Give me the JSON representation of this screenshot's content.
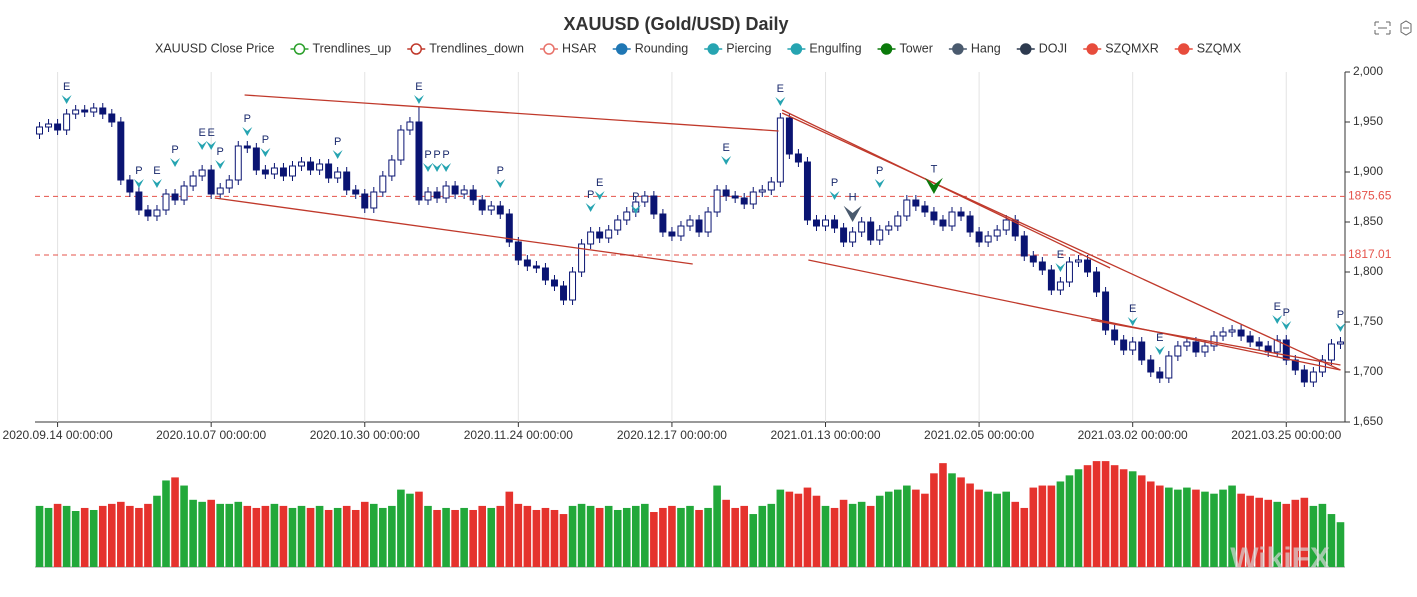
{
  "chart_data": {
    "type": "candlestick",
    "title": "XAUUSD (Gold/USD) Daily",
    "legend": [
      {
        "name": "XAUUSD Close Price",
        "color": "#333333",
        "marker": "none"
      },
      {
        "name": "Trendlines_up",
        "color": "#2ca02c",
        "marker": "hollow"
      },
      {
        "name": "Trendlines_down",
        "color": "#c0392b",
        "marker": "hollow"
      },
      {
        "name": "HSAR",
        "color": "#e8736b",
        "marker": "hollow"
      },
      {
        "name": "Rounding",
        "color": "#1f77b4",
        "marker": "filled"
      },
      {
        "name": "Piercing",
        "color": "#26a4b1",
        "marker": "filled"
      },
      {
        "name": "Engulfing",
        "color": "#26a4b1",
        "marker": "filled"
      },
      {
        "name": "Tower",
        "color": "#0b7a0b",
        "marker": "filled"
      },
      {
        "name": "Hang",
        "color": "#4a5a6e",
        "marker": "filled"
      },
      {
        "name": "DOJI",
        "color": "#2d3a4f",
        "marker": "filled"
      },
      {
        "name": "SZQMXR",
        "color": "#e74c3c",
        "marker": "filled"
      },
      {
        "name": "SZQMX",
        "color": "#e74c3c",
        "marker": "filled"
      }
    ],
    "categories": [
      null,
      null,
      "2020.09.14 00:00:00",
      null,
      null,
      null,
      null,
      null,
      null,
      null,
      null,
      null,
      null,
      null,
      null,
      null,
      null,
      null,
      null,
      "2020.10.07 00:00:00",
      null,
      null,
      null,
      null,
      null,
      null,
      null,
      null,
      null,
      null,
      null,
      null,
      null,
      null,
      null,
      null,
      "2020.10.30 00:00:00",
      null,
      null,
      null,
      null,
      null,
      null,
      null,
      null,
      null,
      null,
      null,
      null,
      null,
      null,
      null,
      null,
      "2020.11.24 00:00:00",
      null,
      null,
      null,
      null,
      null,
      null,
      null,
      null,
      null,
      null,
      null,
      null,
      null,
      null,
      null,
      null,
      "2020.12.17 00:00:00",
      null,
      null,
      null,
      null,
      null,
      null,
      null,
      null,
      null,
      null,
      null,
      null,
      null,
      null,
      null,
      null,
      "2021.01.13 00:00:00",
      null,
      null,
      null,
      null,
      null,
      null,
      null,
      null,
      null,
      null,
      null,
      null,
      null,
      null,
      null,
      null,
      "2021.02.05 00:00:00",
      null,
      null,
      null,
      null,
      null,
      null,
      null,
      null,
      null,
      null,
      null,
      null,
      null,
      null,
      null,
      null,
      "2021.03.02 00:00:00",
      null,
      null,
      null,
      null,
      null,
      null,
      null,
      null,
      null,
      null,
      null,
      null,
      null,
      null,
      null,
      null,
      "2021.03.25 00:00:00",
      null,
      null,
      null,
      null,
      null,
      null
    ],
    "open": [
      1938,
      1945,
      1948,
      1942,
      1958,
      1962,
      1960,
      1964,
      1958,
      1950,
      1892,
      1880,
      1862,
      1856,
      1862,
      1878,
      1872,
      1886,
      1896,
      1902,
      1878,
      1884,
      1892,
      1926,
      1924,
      1902,
      1898,
      1904,
      1896,
      1906,
      1910,
      1902,
      1908,
      1894,
      1900,
      1882,
      1878,
      1864,
      1880,
      1896,
      1912,
      1942,
      1950,
      1872,
      1880,
      1874,
      1886,
      1878,
      1882,
      1872,
      1862,
      1866,
      1858,
      1830,
      1812,
      1806,
      1804,
      1792,
      1786,
      1772,
      1800,
      1828,
      1840,
      1834,
      1842,
      1852,
      1860,
      1870,
      1876,
      1858,
      1840,
      1836,
      1846,
      1852,
      1840,
      1860,
      1882,
      1876,
      1874,
      1868,
      1880,
      1882,
      1890,
      1954,
      1918,
      1910,
      1852,
      1846,
      1852,
      1844,
      1830,
      1840,
      1850,
      1832,
      1842,
      1846,
      1856,
      1872,
      1866,
      1860,
      1852,
      1846,
      1860,
      1856,
      1840,
      1830,
      1836,
      1842,
      1852,
      1836,
      1816,
      1810,
      1802,
      1782,
      1790,
      1810,
      1812,
      1800,
      1780,
      1742,
      1732,
      1722,
      1730,
      1712,
      1700,
      1694,
      1716,
      1726,
      1730,
      1720,
      1726,
      1736,
      1740,
      1742,
      1736,
      1730,
      1726,
      1720,
      1732,
      1712,
      1702,
      1690,
      1700,
      1712,
      1728
    ],
    "high": [
      1950,
      1953,
      1953,
      1963,
      1967,
      1967,
      1969,
      1969,
      1963,
      1955,
      1897,
      1885,
      1867,
      1867,
      1883,
      1883,
      1891,
      1901,
      1907,
      1907,
      1889,
      1897,
      1931,
      1931,
      1929,
      1907,
      1909,
      1909,
      1911,
      1915,
      1915,
      1913,
      1913,
      1905,
      1905,
      1887,
      1883,
      1885,
      1901,
      1917,
      1947,
      1955,
      1965,
      1885,
      1885,
      1891,
      1891,
      1887,
      1887,
      1877,
      1871,
      1871,
      1863,
      1835,
      1817,
      1811,
      1809,
      1797,
      1791,
      1805,
      1833,
      1845,
      1845,
      1847,
      1857,
      1865,
      1875,
      1881,
      1881,
      1863,
      1845,
      1851,
      1857,
      1857,
      1865,
      1887,
      1887,
      1881,
      1879,
      1885,
      1887,
      1895,
      1959,
      1959,
      1923,
      1915,
      1857,
      1857,
      1857,
      1849,
      1845,
      1855,
      1855,
      1847,
      1851,
      1861,
      1877,
      1877,
      1871,
      1865,
      1857,
      1865,
      1865,
      1861,
      1845,
      1841,
      1847,
      1857,
      1857,
      1841,
      1821,
      1815,
      1807,
      1795,
      1815,
      1817,
      1817,
      1805,
      1785,
      1747,
      1737,
      1735,
      1735,
      1717,
      1705,
      1721,
      1731,
      1735,
      1735,
      1731,
      1741,
      1745,
      1747,
      1747,
      1741,
      1735,
      1731,
      1737,
      1737,
      1717,
      1707,
      1705,
      1717,
      1733,
      1735
    ],
    "low": [
      1933,
      1940,
      1937,
      1937,
      1953,
      1955,
      1955,
      1953,
      1945,
      1887,
      1875,
      1857,
      1851,
      1851,
      1857,
      1867,
      1867,
      1881,
      1891,
      1873,
      1873,
      1879,
      1887,
      1919,
      1897,
      1893,
      1893,
      1891,
      1891,
      1901,
      1897,
      1897,
      1889,
      1889,
      1877,
      1873,
      1859,
      1859,
      1875,
      1891,
      1907,
      1937,
      1867,
      1867,
      1869,
      1869,
      1873,
      1873,
      1867,
      1857,
      1857,
      1853,
      1825,
      1807,
      1801,
      1799,
      1787,
      1781,
      1767,
      1767,
      1795,
      1823,
      1829,
      1829,
      1837,
      1847,
      1855,
      1865,
      1853,
      1835,
      1831,
      1831,
      1841,
      1835,
      1835,
      1855,
      1871,
      1869,
      1863,
      1863,
      1875,
      1877,
      1885,
      1913,
      1905,
      1847,
      1841,
      1841,
      1839,
      1825,
      1825,
      1835,
      1827,
      1827,
      1837,
      1841,
      1851,
      1861,
      1855,
      1847,
      1841,
      1841,
      1851,
      1835,
      1825,
      1825,
      1831,
      1837,
      1831,
      1811,
      1805,
      1797,
      1777,
      1777,
      1785,
      1805,
      1795,
      1775,
      1737,
      1727,
      1717,
      1717,
      1707,
      1695,
      1689,
      1689,
      1711,
      1721,
      1715,
      1715,
      1721,
      1731,
      1735,
      1731,
      1725,
      1721,
      1715,
      1715,
      1707,
      1697,
      1685,
      1685,
      1695,
      1707,
      1723
    ],
    "close": [
      1945,
      1948,
      1942,
      1958,
      1962,
      1960,
      1964,
      1958,
      1950,
      1892,
      1880,
      1862,
      1856,
      1862,
      1878,
      1872,
      1886,
      1896,
      1902,
      1878,
      1884,
      1892,
      1926,
      1924,
      1902,
      1898,
      1904,
      1896,
      1906,
      1910,
      1902,
      1908,
      1894,
      1900,
      1882,
      1878,
      1864,
      1880,
      1896,
      1912,
      1942,
      1950,
      1872,
      1880,
      1874,
      1886,
      1878,
      1882,
      1872,
      1862,
      1866,
      1858,
      1830,
      1812,
      1806,
      1804,
      1792,
      1786,
      1772,
      1800,
      1828,
      1840,
      1834,
      1842,
      1852,
      1860,
      1870,
      1876,
      1858,
      1840,
      1836,
      1846,
      1852,
      1840,
      1860,
      1882,
      1876,
      1874,
      1868,
      1880,
      1882,
      1890,
      1954,
      1918,
      1910,
      1852,
      1846,
      1852,
      1844,
      1830,
      1840,
      1850,
      1832,
      1842,
      1846,
      1856,
      1872,
      1866,
      1860,
      1852,
      1846,
      1860,
      1856,
      1840,
      1830,
      1836,
      1842,
      1852,
      1836,
      1816,
      1810,
      1802,
      1782,
      1790,
      1810,
      1812,
      1800,
      1780,
      1742,
      1732,
      1722,
      1730,
      1712,
      1700,
      1694,
      1716,
      1726,
      1730,
      1720,
      1726,
      1736,
      1740,
      1742,
      1736,
      1730,
      1726,
      1720,
      1732,
      1712,
      1702,
      1690,
      1700,
      1712,
      1728,
      1730
    ],
    "candle_color": "#0a1472",
    "volume": {
      "ylim": [
        0,
        110
      ],
      "up_color": "#22a83a",
      "down_color": "#e5322d",
      "values": [
        60,
        58,
        62,
        60,
        55,
        58,
        56,
        60,
        62,
        64,
        60,
        58,
        62,
        70,
        85,
        88,
        80,
        66,
        64,
        66,
        62,
        62,
        64,
        60,
        58,
        60,
        62,
        60,
        58,
        60,
        58,
        60,
        56,
        58,
        60,
        56,
        64,
        62,
        58,
        60,
        76,
        72,
        74,
        60,
        56,
        58,
        56,
        58,
        56,
        60,
        58,
        60,
        74,
        62,
        60,
        56,
        58,
        56,
        52,
        60,
        62,
        60,
        58,
        60,
        56,
        58,
        60,
        62,
        54,
        58,
        60,
        58,
        60,
        56,
        58,
        80,
        66,
        58,
        60,
        52,
        60,
        62,
        76,
        74,
        72,
        78,
        70,
        60,
        58,
        66,
        62,
        64,
        60,
        70,
        74,
        76,
        80,
        76,
        72,
        92,
        102,
        92,
        88,
        82,
        76,
        74,
        72,
        74,
        64,
        58,
        78,
        80,
        80,
        84,
        90,
        96,
        100,
        104,
        104,
        100,
        96,
        94,
        90,
        84,
        80,
        78,
        76,
        78,
        76,
        74,
        72,
        76,
        80,
        72,
        70,
        68,
        66,
        64,
        62,
        66,
        68,
        60,
        62,
        52,
        44
      ]
    },
    "ylim": [
      1650,
      2000
    ],
    "yticks": [
      {
        "value": 1650,
        "label": "1,650"
      },
      {
        "value": 1700,
        "label": "1,700"
      },
      {
        "value": 1750,
        "label": "1,750"
      },
      {
        "value": 1800,
        "label": "1,800"
      },
      {
        "value": 1850,
        "label": "1,850"
      },
      {
        "value": 1900,
        "label": "1,900"
      },
      {
        "value": 1950,
        "label": "1,950"
      },
      {
        "value": 2000,
        "label": "2,000"
      }
    ],
    "hlines": [
      {
        "value": 1875.65,
        "color": "#e5534b"
      },
      {
        "value": 1817.01,
        "color": "#e5534b"
      }
    ],
    "trendlines": [
      {
        "x": [
          22.7,
          81.8
        ],
        "y": [
          1977,
          1941
        ],
        "color": "#c0392b"
      },
      {
        "x": [
          19.4,
          72.3
        ],
        "y": [
          1874,
          1808
        ],
        "color": "#c0392b"
      },
      {
        "x": [
          82.2,
          144
        ],
        "y": [
          1959,
          1702
        ],
        "color": "#c0392b"
      },
      {
        "x": [
          82.2,
          118.5
        ],
        "y": [
          1962,
          1804
        ],
        "color": "#c0392b"
      },
      {
        "x": [
          85.1,
          144
        ],
        "y": [
          1812,
          1702
        ],
        "color": "#c0392b"
      },
      {
        "x": [
          116.4,
          144
        ],
        "y": [
          1752,
          1707
        ],
        "color": "#c0392b"
      }
    ],
    "patterns": [
      {
        "label": "E",
        "index": 3,
        "value": 1968,
        "color": "#26a4b1"
      },
      {
        "label": "P",
        "index": 11,
        "value": 1884,
        "color": "#26a4b1"
      },
      {
        "label": "E",
        "index": 13,
        "value": 1884,
        "color": "#26a4b1"
      },
      {
        "label": "P",
        "index": 15,
        "value": 1905,
        "color": "#26a4b1"
      },
      {
        "label": "E",
        "index": 18,
        "value": 1922,
        "color": "#26a4b1"
      },
      {
        "label": "E",
        "index": 19,
        "value": 1922,
        "color": "#26a4b1"
      },
      {
        "label": "P",
        "index": 20,
        "value": 1903,
        "color": "#26a4b1"
      },
      {
        "label": "P",
        "index": 23,
        "value": 1936,
        "color": "#26a4b1"
      },
      {
        "label": "P",
        "index": 25,
        "value": 1915,
        "color": "#26a4b1"
      },
      {
        "label": "P",
        "index": 33,
        "value": 1913,
        "color": "#26a4b1"
      },
      {
        "label": "E",
        "index": 42,
        "value": 1968,
        "color": "#26a4b1"
      },
      {
        "label": "P",
        "index": 43,
        "value": 1900,
        "color": "#26a4b1"
      },
      {
        "label": "P",
        "index": 44,
        "value": 1900,
        "color": "#26a4b1"
      },
      {
        "label": "P",
        "index": 45,
        "value": 1900,
        "color": "#26a4b1"
      },
      {
        "label": "P",
        "index": 51,
        "value": 1884,
        "color": "#26a4b1"
      },
      {
        "label": "P",
        "index": 61,
        "value": 1860,
        "color": "#26a4b1"
      },
      {
        "label": "E",
        "index": 62,
        "value": 1872,
        "color": "#26a4b1"
      },
      {
        "label": "P",
        "index": 66,
        "value": 1858,
        "color": "#26a4b1"
      },
      {
        "label": "E",
        "index": 76,
        "value": 1907,
        "color": "#26a4b1"
      },
      {
        "label": "E",
        "index": 82,
        "value": 1966,
        "color": "#26a4b1"
      },
      {
        "label": "P",
        "index": 88,
        "value": 1872,
        "color": "#26a4b1"
      },
      {
        "label": "H",
        "index": 90,
        "value": 1850,
        "color": "#4a5a6e"
      },
      {
        "label": "P",
        "index": 93,
        "value": 1884,
        "color": "#26a4b1"
      },
      {
        "label": "T",
        "index": 99,
        "value": 1878,
        "color": "#0b7a0b"
      },
      {
        "label": "E",
        "index": 113,
        "value": 1800,
        "color": "#26a4b1"
      },
      {
        "label": "E",
        "index": 121,
        "value": 1746,
        "color": "#26a4b1"
      },
      {
        "label": "E",
        "index": 124,
        "value": 1717,
        "color": "#26a4b1"
      },
      {
        "label": "E",
        "index": 137,
        "value": 1748,
        "color": "#26a4b1"
      },
      {
        "label": "P",
        "index": 138,
        "value": 1742,
        "color": "#26a4b1"
      },
      {
        "label": "P",
        "index": 144,
        "value": 1740,
        "color": "#26a4b1"
      }
    ],
    "watermark": "WikiFX"
  }
}
